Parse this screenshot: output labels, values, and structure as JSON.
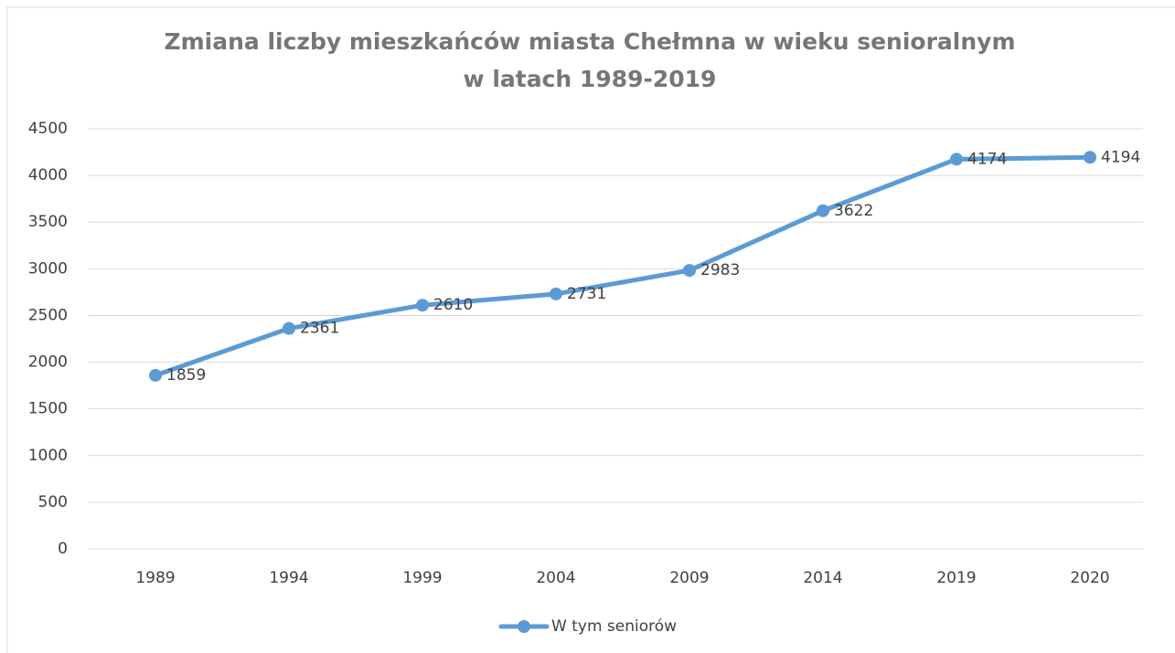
{
  "chart_data": {
    "type": "line",
    "title": [
      "Zmiana liczby mieszkańców miasta Chełmna w wieku senioralnym",
      "w latach 1989-2019"
    ],
    "categories": [
      "1989",
      "1994",
      "1999",
      "2004",
      "2009",
      "2014",
      "2019",
      "2020"
    ],
    "series": [
      {
        "name": "W tym seniorów",
        "color": "#5b9bd5",
        "values": [
          1859,
          2361,
          2610,
          2731,
          2983,
          3622,
          4174,
          4194
        ]
      }
    ],
    "ylim": [
      0,
      4500
    ],
    "yticks": [
      0,
      500,
      1000,
      1500,
      2000,
      2500,
      3000,
      3500,
      4000,
      4500
    ],
    "grid": true,
    "legend": "bottom",
    "data_labels": true
  }
}
